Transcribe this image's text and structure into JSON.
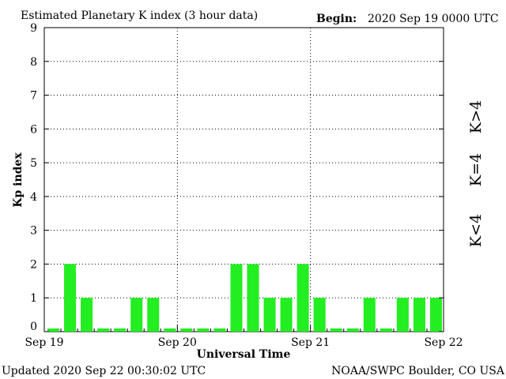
{
  "header": {
    "title": "Estimated Planetary K index (3 hour data)",
    "begin_label": "Begin:",
    "begin_value": "2020 Sep 19 0000 UTC"
  },
  "footer": {
    "updated": "Updated 2020 Sep 22 00:30:02 UTC",
    "source": "NOAA/SWPC Boulder, CO USA"
  },
  "legend": {
    "high": {
      "label": "K>4",
      "color": "#ff2a00"
    },
    "mid": {
      "label": "K=4",
      "color": "#ffd700"
    },
    "low": {
      "label": "K<4",
      "color": "#22ee22"
    }
  },
  "chart_data": {
    "type": "bar",
    "title": "Estimated Planetary K index (3 hour data)",
    "xlabel": "Universal Time",
    "ylabel": "Kp index",
    "ylim": [
      0,
      9
    ],
    "yticks": [
      "0",
      "1",
      "2",
      "3",
      "4",
      "5",
      "6",
      "7",
      "8",
      "9"
    ],
    "xticks": [
      "Sep 19",
      "Sep 20",
      "Sep 21",
      "Sep 22"
    ],
    "grid": true,
    "bar_color": "#22ee22",
    "values": [
      0,
      2,
      1,
      0,
      0,
      1,
      1,
      0,
      0,
      0,
      0,
      2,
      2,
      1,
      1,
      2,
      1,
      0,
      0,
      1,
      0,
      1,
      1,
      1
    ]
  }
}
